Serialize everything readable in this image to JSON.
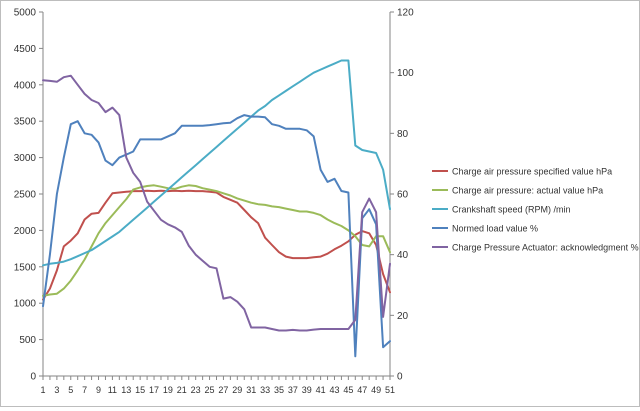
{
  "chart_data": {
    "type": "line",
    "x": [
      1,
      2,
      3,
      4,
      5,
      6,
      7,
      8,
      9,
      10,
      11,
      12,
      13,
      14,
      15,
      16,
      17,
      18,
      19,
      20,
      21,
      22,
      23,
      24,
      25,
      26,
      27,
      28,
      29,
      30,
      31,
      32,
      33,
      34,
      35,
      36,
      37,
      38,
      39,
      40,
      41,
      42,
      43,
      44,
      45,
      46,
      47,
      48,
      49,
      50,
      51
    ],
    "x_tick_labels": [
      "1",
      "3",
      "5",
      "7",
      "9",
      "11",
      "13",
      "15",
      "17",
      "19",
      "21",
      "23",
      "25",
      "27",
      "29",
      "31",
      "33",
      "35",
      "37",
      "39",
      "41",
      "43",
      "45",
      "47",
      "49",
      "51"
    ],
    "left_axis": {
      "min": 0,
      "max": 5000,
      "step": 500,
      "tick_labels": [
        "0",
        "500",
        "1000",
        "1500",
        "2000",
        "2500",
        "3000",
        "3500",
        "4000",
        "4500",
        "5000"
      ]
    },
    "right_axis": {
      "min": 0,
      "max": 120,
      "step": 20,
      "tick_labels": [
        "0",
        "20",
        "40",
        "60",
        "80",
        "100",
        "120"
      ]
    },
    "gridlines": false,
    "legend_position": "right",
    "series": [
      {
        "name": "Charge air pressure specified value  hPa",
        "axis": "left",
        "color": "#c0504d",
        "values": [
          1050,
          1200,
          1450,
          1780,
          1860,
          1960,
          2150,
          2230,
          2240,
          2380,
          2510,
          2520,
          2530,
          2540,
          2540,
          2545,
          2540,
          2545,
          2540,
          2545,
          2540,
          2545,
          2540,
          2540,
          2530,
          2520,
          2460,
          2420,
          2380,
          2280,
          2180,
          2100,
          1900,
          1800,
          1700,
          1640,
          1620,
          1620,
          1620,
          1630,
          1640,
          1680,
          1740,
          1790,
          1850,
          1940,
          1990,
          1960,
          1800,
          1400,
          1150
        ]
      },
      {
        "name": "Charge air pressure: actual value  hPa",
        "axis": "left",
        "color": "#9bbb59",
        "values": [
          1100,
          1120,
          1130,
          1200,
          1310,
          1450,
          1600,
          1780,
          1960,
          2100,
          2210,
          2320,
          2430,
          2560,
          2590,
          2610,
          2620,
          2600,
          2580,
          2570,
          2600,
          2620,
          2610,
          2580,
          2560,
          2540,
          2510,
          2480,
          2440,
          2410,
          2380,
          2360,
          2350,
          2330,
          2320,
          2300,
          2280,
          2260,
          2260,
          2240,
          2210,
          2150,
          2100,
          2060,
          2000,
          1920,
          1800,
          1780,
          1920,
          1920,
          1700
        ]
      },
      {
        "name": "Crankshaft speed (RPM)  /min",
        "axis": "right",
        "color": "#4bacc6",
        "values": [
          36.5,
          37,
          37.3,
          37.7,
          38.5,
          39.5,
          40.5,
          41.5,
          43,
          44.5,
          46,
          47.5,
          49.5,
          51.5,
          53.5,
          55.5,
          57.5,
          59.5,
          61.5,
          63.5,
          65.5,
          67.5,
          69.5,
          71.5,
          73.5,
          75.5,
          77.5,
          79.5,
          81.5,
          83.5,
          85.5,
          87.5,
          89,
          91,
          92.5,
          94,
          95.5,
          97,
          98.5,
          100,
          101,
          102,
          103,
          104,
          104,
          76,
          74.5,
          74,
          73.5,
          68,
          55
        ]
      },
      {
        "name": "Normed load value  %",
        "axis": "right",
        "color": "#4f81bd",
        "values": [
          23,
          40,
          60,
          72,
          83,
          84,
          80,
          79.5,
          77,
          71,
          69.5,
          72,
          73,
          74,
          78,
          78,
          78,
          78,
          79,
          80,
          82.5,
          82.5,
          82.5,
          82.5,
          82.7,
          83,
          83.3,
          83.5,
          85,
          86,
          85.5,
          85.5,
          85.3,
          83,
          82.5,
          81.5,
          81.5,
          81.5,
          81,
          79,
          68,
          64,
          65,
          61,
          60.5,
          6.5,
          52,
          55,
          50,
          9.5,
          11.5
        ]
      },
      {
        "name": "Charge Pressure Actuator: acknowledgment  %",
        "axis": "right",
        "color": "#8064a2",
        "values": [
          97.5,
          97.3,
          97,
          98.5,
          99,
          96,
          93,
          91,
          90,
          87,
          88.5,
          86,
          72,
          67,
          64,
          57.5,
          54.5,
          51.5,
          50,
          49,
          47.5,
          43,
          40,
          38,
          36,
          35.5,
          25.5,
          26,
          24.5,
          22,
          16,
          16,
          16,
          15.5,
          15,
          15,
          15.2,
          15,
          15,
          15.3,
          15.5,
          15.5,
          15.5,
          15.5,
          15.5,
          18.5,
          54,
          58.5,
          54,
          19.5,
          37
        ]
      }
    ]
  }
}
